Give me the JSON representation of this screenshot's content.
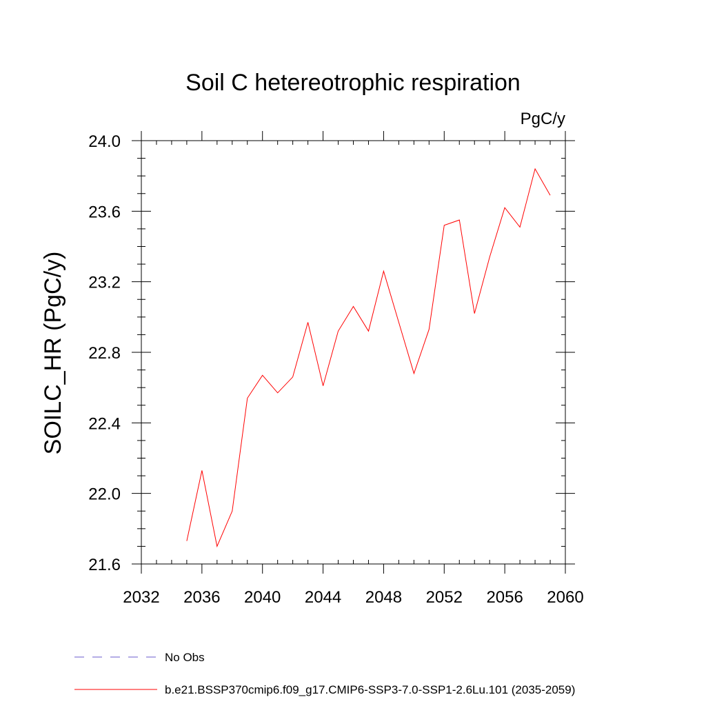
{
  "chart_data": {
    "type": "line",
    "title": "Soil C hetereotrophic respiration",
    "units_label": "PgC/y",
    "ylabel": "SOILC_HR  (PgC/y)",
    "xlabel": "",
    "xlim": [
      2032,
      2060
    ],
    "ylim": [
      21.6,
      24.0
    ],
    "x_major_ticks": [
      2032,
      2036,
      2040,
      2044,
      2048,
      2052,
      2056,
      2060
    ],
    "x_tick_labels": [
      "2032",
      "2036",
      "2040",
      "2044",
      "2048",
      "2052",
      "2056",
      "2060"
    ],
    "x_minor_step": 1,
    "y_major_ticks": [
      21.6,
      22.0,
      22.4,
      22.8,
      23.2,
      23.6,
      24.0
    ],
    "y_tick_labels": [
      "21.6",
      "22.0",
      "22.4",
      "22.8",
      "23.2",
      "23.6",
      "24.0"
    ],
    "y_minor_step": 0.1,
    "grid": false,
    "series": [
      {
        "name": "b.e21.BSSP370cmip6.f09_g17.CMIP6-SSP3-7.0-SSP1-2.6Lu.101 (2035-2059)",
        "color": "#ff0000",
        "x": [
          2035,
          2036,
          2037,
          2038,
          2039,
          2040,
          2041,
          2042,
          2043,
          2044,
          2045,
          2046,
          2047,
          2048,
          2049,
          2050,
          2051,
          2052,
          2053,
          2054,
          2055,
          2056,
          2057,
          2058,
          2059
        ],
        "y": [
          21.73,
          22.13,
          21.7,
          21.9,
          22.54,
          22.67,
          22.57,
          22.66,
          22.97,
          22.61,
          22.92,
          23.06,
          22.92,
          23.26,
          22.97,
          22.68,
          22.93,
          23.52,
          23.55,
          23.02,
          23.34,
          23.62,
          23.51,
          23.84,
          23.69
        ]
      }
    ],
    "legend": {
      "placement": "bottom-left",
      "entries": [
        {
          "label": "No Obs",
          "color": "#6a5acd",
          "style": "dashed"
        },
        {
          "label": "b.e21.BSSP370cmip6.f09_g17.CMIP6-SSP3-7.0-SSP1-2.6Lu.101 (2035-2059)",
          "color": "#ff0000",
          "style": "solid"
        }
      ]
    }
  }
}
